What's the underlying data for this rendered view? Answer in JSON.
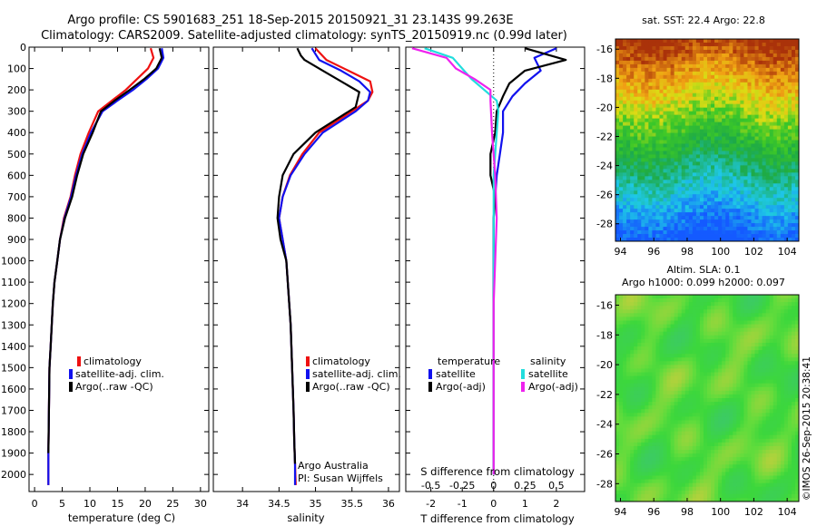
{
  "title_line1": "Argo profile: CS 5901683_251 18-Sep-2015 20150921_31 23.143S 99.263E",
  "title_line2": "Climatology: CARS2009. Satellite-adjusted climatology: synTS_20150919.nc (0.99d later)",
  "footer_stamp": "©IMOS 26-Sep-2015 20:38:41",
  "colors": {
    "climatology": "#ee1111",
    "satellite": "#1111ee",
    "argo": "#000000",
    "sal_sat": "#22dddd",
    "sal_argo": "#ee22ee"
  },
  "chart_data": [
    {
      "type": "line",
      "xlabel": "temperature (deg C)",
      "xlim": [
        -1,
        31.5
      ],
      "ylim": [
        2080,
        0
      ],
      "xticks": [
        "0",
        "5",
        "10",
        "15",
        "20",
        "25",
        "30"
      ],
      "xtick_values": [
        0,
        5,
        10,
        15,
        20,
        25,
        30
      ],
      "yticks": [
        "0",
        "100",
        "200",
        "300",
        "400",
        "500",
        "600",
        "700",
        "800",
        "900",
        "1000",
        "1100",
        "1200",
        "1300",
        "1400",
        "1500",
        "1600",
        "1700",
        "1800",
        "1900",
        "2000"
      ],
      "ytick_values": [
        0,
        100,
        200,
        300,
        400,
        500,
        600,
        700,
        800,
        900,
        1000,
        1100,
        1200,
        1300,
        1400,
        1500,
        1600,
        1700,
        1800,
        1900,
        2000
      ],
      "legend": [
        "climatology",
        "satellite-adj. clim.",
        "Argo(..raw -QC)"
      ],
      "series": [
        {
          "name": "climatology",
          "x": [
            21,
            21.5,
            20.5,
            18.5,
            16.5,
            14,
            11.5,
            9.8,
            8.3,
            7.3,
            6.5,
            5.3,
            4.6,
            4.1,
            3.6,
            3.3,
            3.1,
            2.9,
            2.7,
            2.6,
            2.5,
            2.5
          ],
          "y": [
            5,
            50,
            100,
            150,
            200,
            250,
            300,
            400,
            500,
            600,
            700,
            800,
            900,
            1000,
            1100,
            1200,
            1300,
            1400,
            1500,
            1700,
            1900,
            2050
          ]
        },
        {
          "name": "satellite-adj. clim.",
          "x": [
            23,
            23.3,
            22.3,
            20.2,
            17.8,
            15,
            12.3,
            10.2,
            8.6,
            7.5,
            6.6,
            5.4,
            4.6,
            4.1,
            3.6,
            3.3,
            3.1,
            2.9,
            2.7,
            2.6,
            2.5,
            2.5
          ],
          "y": [
            5,
            50,
            100,
            150,
            200,
            250,
            300,
            400,
            500,
            600,
            700,
            800,
            900,
            1000,
            1100,
            1200,
            1300,
            1400,
            1500,
            1700,
            1900,
            2050
          ]
        },
        {
          "name": "Argo(..raw -QC)",
          "x": [
            22.6,
            23,
            22,
            19.8,
            17.2,
            14.5,
            12,
            10.5,
            8.8,
            7.7,
            6.8,
            5.5,
            4.6,
            4.1,
            3.6,
            3.3,
            3.1,
            2.9,
            2.7,
            2.6,
            2.5
          ],
          "y": [
            5,
            50,
            100,
            150,
            200,
            250,
            300,
            400,
            500,
            600,
            700,
            800,
            900,
            1000,
            1100,
            1200,
            1300,
            1400,
            1500,
            1700,
            1900
          ]
        }
      ]
    },
    {
      "type": "line",
      "xlabel": "salinity",
      "xlim": [
        33.6,
        36.15
      ],
      "ylim": [
        2080,
        0
      ],
      "xticks": [
        "34",
        "34.5",
        "35",
        "35.5",
        "36"
      ],
      "xtick_values": [
        34,
        34.5,
        35,
        35.5,
        36
      ],
      "legend": [
        "climatology",
        "satellite-adj. clim.",
        "Argo(..raw -QC)"
      ],
      "annotations": [
        "Argo Australia",
        "PI: Susan Wijffels"
      ],
      "series": [
        {
          "name": "climatology",
          "x": [
            35.0,
            35.15,
            35.45,
            35.75,
            35.78,
            35.72,
            35.5,
            35.05,
            34.82,
            34.65,
            34.55,
            34.5,
            34.55,
            34.6,
            34.62,
            34.66,
            34.68,
            34.7,
            34.71,
            34.72,
            34.73
          ],
          "y": [
            5,
            60,
            110,
            160,
            210,
            250,
            300,
            400,
            500,
            600,
            700,
            800,
            900,
            1000,
            1100,
            1300,
            1500,
            1700,
            1850,
            1950,
            2050
          ]
        },
        {
          "name": "satellite-adj. clim.",
          "x": [
            34.95,
            35.05,
            35.35,
            35.6,
            35.75,
            35.72,
            35.55,
            35.1,
            34.85,
            34.66,
            34.55,
            34.5,
            34.55,
            34.6,
            34.62,
            34.66,
            34.68,
            34.7,
            34.71,
            34.72,
            34.72
          ],
          "y": [
            5,
            60,
            110,
            160,
            210,
            250,
            300,
            400,
            500,
            600,
            700,
            800,
            900,
            1000,
            1100,
            1300,
            1500,
            1700,
            1850,
            1950,
            2050
          ]
        },
        {
          "name": "Argo(..raw -QC)",
          "x": [
            34.75,
            34.8,
            34.85,
            35.1,
            35.35,
            35.6,
            35.55,
            35.0,
            34.7,
            34.55,
            34.5,
            34.48,
            34.52,
            34.6,
            34.62,
            34.66,
            34.68,
            34.7,
            34.71,
            34.72
          ],
          "y": [
            5,
            40,
            60,
            110,
            160,
            210,
            280,
            400,
            500,
            600,
            700,
            800,
            900,
            1000,
            1100,
            1300,
            1500,
            1700,
            1850,
            1950
          ]
        }
      ]
    },
    {
      "type": "line",
      "xlabel": "T difference from climatology",
      "xlabel2": "S difference from climatology",
      "xlim": [
        -2.8,
        2.9
      ],
      "ylim": [
        2080,
        0
      ],
      "xticks_T": [
        "-2",
        "-1",
        "0",
        "1",
        "2"
      ],
      "xtick_values_T": [
        -2,
        -1,
        0,
        1,
        2
      ],
      "xticks_S": [
        "-0.5",
        "-0.25",
        "0",
        "0.25",
        "0.5"
      ],
      "xtick_values_S": [
        -0.5,
        -0.25,
        0,
        0.25,
        0.5
      ],
      "legend_temperature": {
        "title": "temperature",
        "items": [
          "satellite",
          "Argo(-adj)"
        ]
      },
      "legend_salinity": {
        "title": "salinity",
        "items": [
          "satellite",
          "Argo(-adj)"
        ]
      },
      "series": [
        {
          "name": "temperature satellite",
          "x": [
            2.0,
            1.3,
            1.5,
            1.0,
            0.6,
            0.3,
            0.3,
            0.2,
            0.1,
            0.05,
            0.0,
            0.0,
            0.0
          ],
          "y": [
            5,
            50,
            110,
            170,
            230,
            300,
            400,
            500,
            600,
            700,
            800,
            900,
            2000
          ]
        },
        {
          "name": "temperature Argo(-adj)",
          "x": [
            1.0,
            2.3,
            1.0,
            0.5,
            0.3,
            0.1,
            0.05,
            -0.1,
            -0.1,
            0.05,
            0.0,
            0.0,
            0.0
          ],
          "y": [
            5,
            60,
            110,
            170,
            230,
            300,
            400,
            500,
            600,
            700,
            800,
            900,
            2000
          ]
        },
        {
          "name": "salinity satellite",
          "x": [
            -2.2,
            -1.3,
            -1.0,
            -0.7,
            -0.3,
            0.1,
            0.15,
            0.1,
            0.05,
            0.0,
            0.0,
            0.0
          ],
          "y": [
            5,
            50,
            100,
            150,
            200,
            250,
            300,
            400,
            500,
            600,
            800,
            2000
          ]
        },
        {
          "name": "salinity Argo(-adj)",
          "x": [
            -2.6,
            -1.5,
            -1.2,
            -0.6,
            -0.1,
            -0.1,
            -0.05,
            0.05,
            0.1,
            0.05,
            0.0,
            0.0
          ],
          "y": [
            5,
            50,
            100,
            150,
            200,
            250,
            400,
            600,
            800,
            1000,
            1200,
            2000
          ]
        }
      ]
    },
    {
      "type": "heatmap",
      "title": "sat. SST: 22.4  Argo: 22.8",
      "xlim": [
        93.7,
        104.7
      ],
      "ylim": [
        -29.2,
        -15.3
      ],
      "xticks": [
        "94",
        "96",
        "98",
        "100",
        "102",
        "104"
      ],
      "xtick_values": [
        94,
        96,
        98,
        100,
        102,
        104
      ],
      "yticks": [
        "-16",
        "-18",
        "-20",
        "-22",
        "-24",
        "-26",
        "-28"
      ],
      "ytick_values": [
        -16,
        -18,
        -20,
        -22,
        -24,
        -26,
        -28
      ],
      "profile_marker": [
        99.263,
        -23.143
      ]
    },
    {
      "type": "heatmap",
      "title": "Altim. SLA: 0.1",
      "subtitle": "Argo h1000: 0.099  h2000: 0.097",
      "xlim": [
        93.7,
        104.7
      ],
      "ylim": [
        -29.2,
        -15.3
      ],
      "xticks": [
        "94",
        "96",
        "98",
        "100",
        "102",
        "104"
      ],
      "xtick_values": [
        94,
        96,
        98,
        100,
        102,
        104
      ],
      "yticks": [
        "-16",
        "-18",
        "-20",
        "-22",
        "-24",
        "-26",
        "-28"
      ],
      "ytick_values": [
        -16,
        -18,
        -20,
        -22,
        -24,
        -26,
        -28
      ]
    }
  ]
}
